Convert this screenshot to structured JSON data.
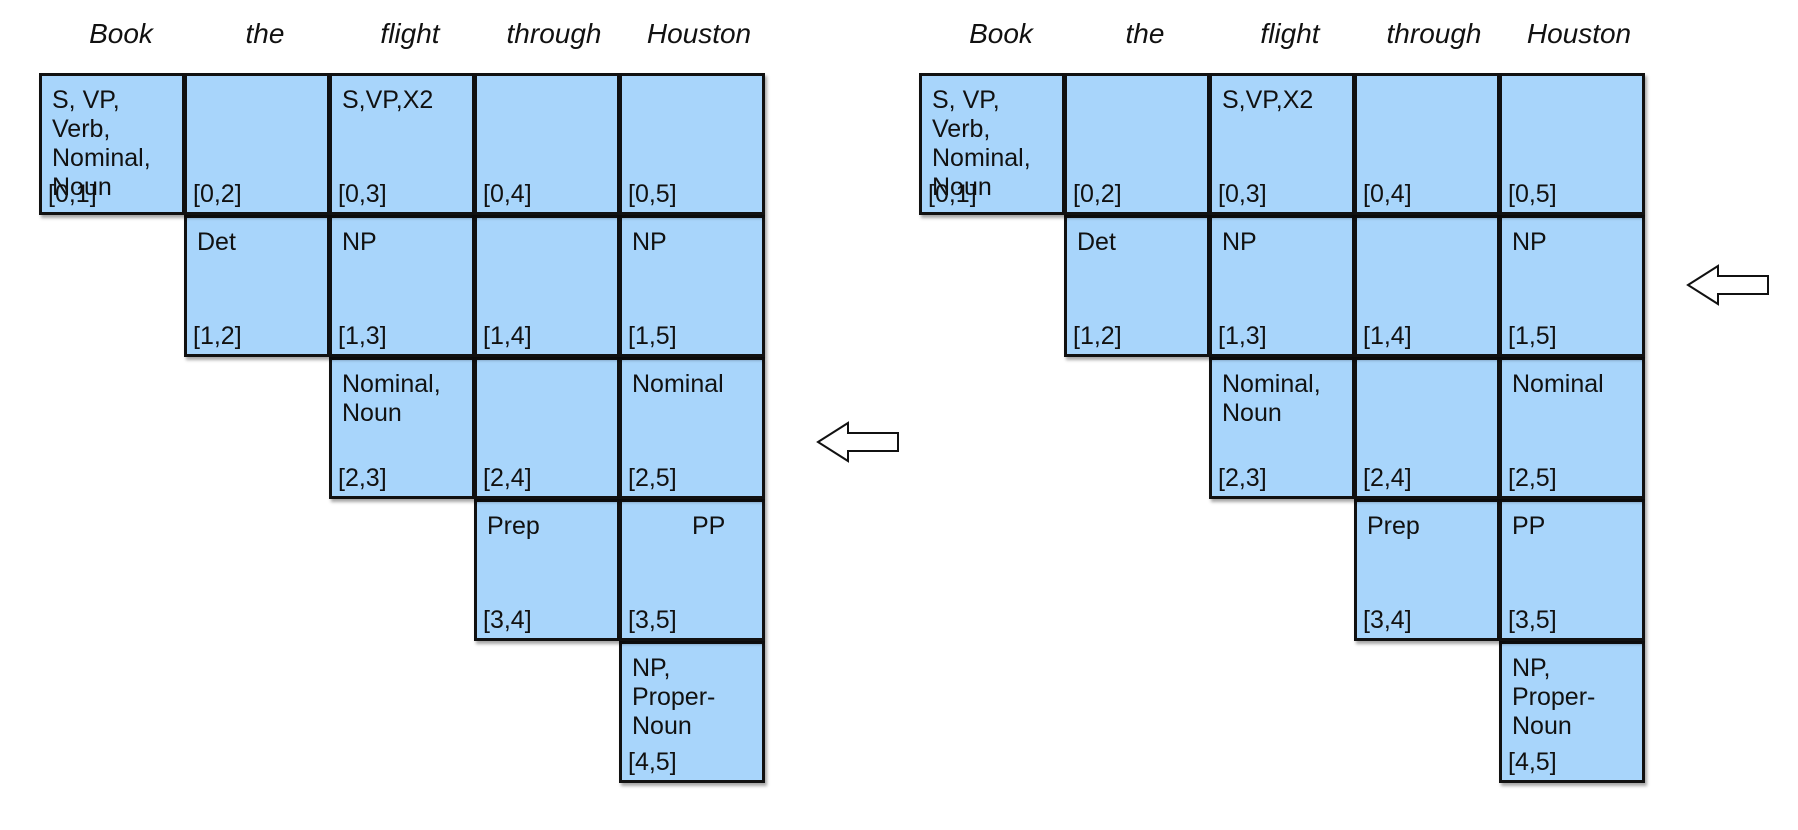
{
  "words": [
    "Book",
    "the",
    "flight",
    "through",
    "Houston"
  ],
  "panels": [
    {
      "cells": [
        {
          "i": 0,
          "j": 1,
          "label": "S, VP, Verb,\nNominal,\nNoun",
          "index": "[0,1]"
        },
        {
          "i": 0,
          "j": 2,
          "label": "",
          "index": "[0,2]"
        },
        {
          "i": 0,
          "j": 3,
          "label": "S,VP,X2",
          "index": "[0,3]"
        },
        {
          "i": 0,
          "j": 4,
          "label": "",
          "index": "[0,4]"
        },
        {
          "i": 0,
          "j": 5,
          "label": "",
          "index": "[0,5]"
        },
        {
          "i": 1,
          "j": 2,
          "label": "Det",
          "index": "[1,2]"
        },
        {
          "i": 1,
          "j": 3,
          "label": "NP",
          "index": "[1,3]"
        },
        {
          "i": 1,
          "j": 4,
          "label": "",
          "index": "[1,4]"
        },
        {
          "i": 1,
          "j": 5,
          "label": "NP",
          "index": "[1,5]"
        },
        {
          "i": 2,
          "j": 3,
          "label": "Nominal,\nNoun",
          "index": "[2,3]"
        },
        {
          "i": 2,
          "j": 4,
          "label": "",
          "index": "[2,4]"
        },
        {
          "i": 2,
          "j": 5,
          "label": "Nominal",
          "index": "[2,5]"
        },
        {
          "i": 3,
          "j": 4,
          "label": "Prep",
          "index": "[3,4]"
        },
        {
          "i": 3,
          "j": 5,
          "label": "PP",
          "index": "[3,5]"
        },
        {
          "i": 4,
          "j": 5,
          "label": "NP,\nProper-\nNoun",
          "index": "[4,5]"
        }
      ]
    },
    {
      "cells": [
        {
          "i": 0,
          "j": 1,
          "label": "S, VP, Verb,\nNominal,\nNoun",
          "index": "[0,1]"
        },
        {
          "i": 0,
          "j": 2,
          "label": "",
          "index": "[0,2]"
        },
        {
          "i": 0,
          "j": 3,
          "label": "S,VP,X2",
          "index": "[0,3]"
        },
        {
          "i": 0,
          "j": 4,
          "label": "",
          "index": "[0,4]"
        },
        {
          "i": 0,
          "j": 5,
          "label": "",
          "index": "[0,5]"
        },
        {
          "i": 1,
          "j": 2,
          "label": "Det",
          "index": "[1,2]"
        },
        {
          "i": 1,
          "j": 3,
          "label": "NP",
          "index": "[1,3]"
        },
        {
          "i": 1,
          "j": 4,
          "label": "",
          "index": "[1,4]"
        },
        {
          "i": 1,
          "j": 5,
          "label": "NP",
          "index": "[1,5]"
        },
        {
          "i": 2,
          "j": 3,
          "label": "Nominal,\nNoun",
          "index": "[2,3]"
        },
        {
          "i": 2,
          "j": 4,
          "label": "",
          "index": "[2,4]"
        },
        {
          "i": 2,
          "j": 5,
          "label": "Nominal",
          "index": "[2,5]"
        },
        {
          "i": 3,
          "j": 4,
          "label": "Prep",
          "index": "[3,4]"
        },
        {
          "i": 3,
          "j": 5,
          "label": "PP",
          "index": "[3,5]"
        },
        {
          "i": 4,
          "j": 5,
          "label": "NP,\nProper-\nNoun",
          "index": "[4,5]"
        }
      ]
    }
  ],
  "colors": {
    "cell_fill": "#a8d5fb",
    "border": "#111111",
    "background": "#ffffff"
  },
  "icons": {
    "panel_transition": "hollow-left-arrow-icon",
    "backpointer": "arrow-icon"
  }
}
